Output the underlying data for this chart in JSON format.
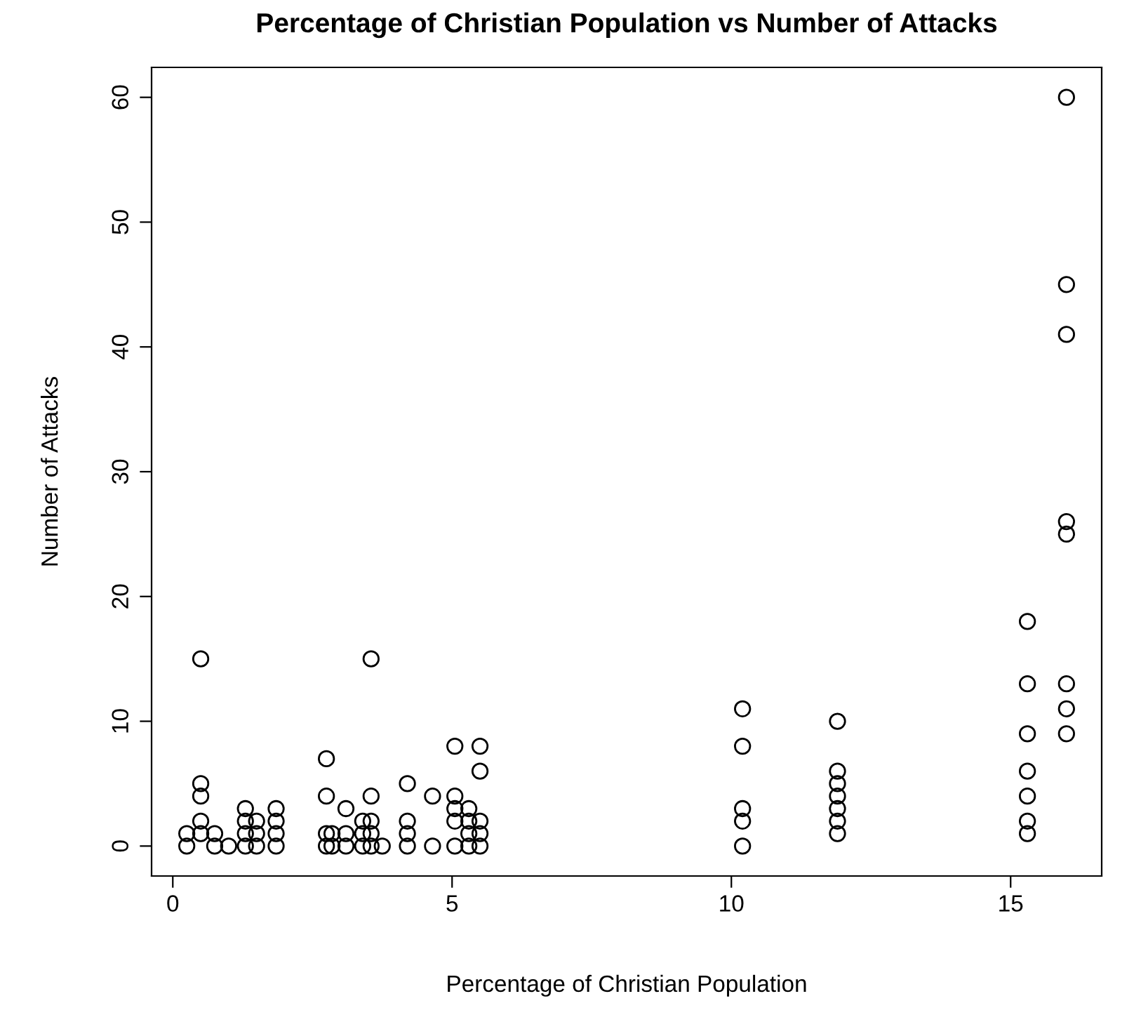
{
  "chart_data": {
    "type": "scatter",
    "title": "Percentage of Christian Population vs Number of Attacks",
    "xlabel": "Percentage of Christian Population",
    "ylabel": "Number of Attacks",
    "x": [
      0.25,
      0.25,
      0.5,
      0.5,
      0.5,
      0.5,
      0.5,
      0.75,
      0.75,
      1.0,
      1.3,
      1.3,
      1.3,
      1.3,
      1.5,
      1.5,
      1.5,
      1.85,
      1.85,
      1.85,
      1.85,
      2.75,
      2.75,
      2.75,
      2.75,
      2.85,
      2.85,
      3.1,
      3.1,
      3.1,
      3.4,
      3.4,
      3.4,
      3.55,
      3.55,
      3.55,
      3.55,
      3.55,
      3.75,
      4.2,
      4.2,
      4.2,
      4.2,
      4.65,
      4.65,
      5.05,
      5.05,
      5.05,
      5.05,
      5.05,
      5.3,
      5.3,
      5.3,
      5.3,
      5.5,
      5.5,
      5.5,
      5.5,
      5.5,
      10.2,
      10.2,
      10.2,
      10.2,
      10.2,
      11.9,
      11.9,
      11.9,
      11.9,
      11.9,
      11.9,
      11.9,
      15.3,
      15.3,
      15.3,
      15.3,
      15.3,
      15.3,
      15.3,
      16.0,
      16.0,
      16.0,
      16.0,
      16.0,
      16.0,
      16.0,
      16.0
    ],
    "series": [
      {
        "color": "#000000",
        "values": [
          0,
          1,
          15,
          5,
          4,
          2,
          1,
          1,
          0,
          0,
          3,
          2,
          1,
          0,
          2,
          1,
          0,
          3,
          2,
          1,
          0,
          7,
          4,
          1,
          0,
          1,
          0,
          3,
          1,
          0,
          2,
          1,
          0,
          15,
          4,
          2,
          1,
          0,
          0,
          5,
          2,
          1,
          0,
          4,
          0,
          8,
          4,
          3,
          2,
          0,
          3,
          2,
          1,
          0,
          8,
          6,
          2,
          1,
          0,
          11,
          8,
          3,
          2,
          0,
          10,
          6,
          5,
          4,
          3,
          2,
          1,
          18,
          13,
          9,
          6,
          4,
          2,
          1,
          60,
          45,
          41,
          26,
          25,
          13,
          11,
          9
        ]
      }
    ],
    "xlim": [
      -0.38,
      16.63
    ],
    "ylim": [
      -2.4,
      62.4
    ],
    "xticks": [
      0,
      5,
      10,
      15
    ],
    "yticks": [
      0,
      10,
      20,
      30,
      40,
      50,
      60
    ],
    "marker": "circle",
    "grid": false,
    "legend": false
  }
}
